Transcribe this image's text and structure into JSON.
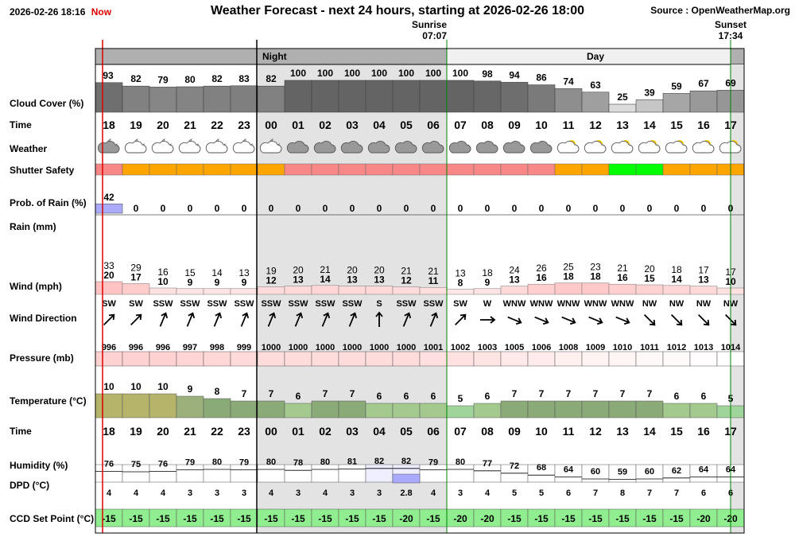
{
  "header": {
    "current_time": "2026-02-26 18:16",
    "now_label": "Now",
    "title": "Weather Forecast - next 24 hours, starting at 2026-02-26 18:00",
    "source": "Source : OpenWeatherMap.org"
  },
  "sun": {
    "sunrise_label": "Sunrise",
    "sunrise_time": "07:07",
    "sunset_label": "Sunset",
    "sunset_time": "17:34"
  },
  "bands": {
    "night": "Night",
    "day": "Day"
  },
  "row_labels": {
    "cloud": "Cloud Cover (%)",
    "time": "Time",
    "weather": "Weather",
    "shutter": "Shutter Safety",
    "rain_prob": "Prob. of Rain (%)",
    "rain": "Rain (mm)",
    "wind": "Wind (mph)",
    "wind_dir": "Wind Direction",
    "pressure": "Pressure (mb)",
    "temperature": "Temperature (°C)",
    "time2": "Time",
    "humidity": "Humidity (%)",
    "dpd": "DPD (°C)",
    "ccd": "CCD Set Point (°C)"
  },
  "colors": {
    "night_band": "#b0b0b0",
    "day_band": "#f0f0f0",
    "night_shade": "#e3e3e3",
    "cloud_fill": "#808080",
    "shutter_red": "#f88888",
    "shutter_orange": "#ffa500",
    "shutter_green": "#00ff00",
    "ccd_green": "#90ee90",
    "now_line": "#dd0000",
    "sun_line": "#008000"
  },
  "chart_data": {
    "type": "table",
    "hours": [
      "18",
      "19",
      "20",
      "21",
      "22",
      "23",
      "00",
      "01",
      "02",
      "03",
      "04",
      "05",
      "06",
      "07",
      "08",
      "09",
      "10",
      "11",
      "12",
      "13",
      "14",
      "15",
      "16",
      "17"
    ],
    "cloud_cover": [
      93,
      82,
      79,
      80,
      82,
      83,
      82,
      100,
      100,
      100,
      100,
      100,
      100,
      100,
      98,
      94,
      86,
      74,
      63,
      25,
      39,
      59,
      67,
      69
    ],
    "weather_icon": [
      "cloudy-night-icon",
      "partly-cloudy-night-icon",
      "partly-cloudy-night-icon",
      "partly-cloudy-night-icon",
      "partly-cloudy-night-icon",
      "partly-cloudy-night-icon",
      "partly-cloudy-night-icon",
      "cloudy-icon",
      "cloudy-icon",
      "cloudy-icon",
      "cloudy-icon",
      "cloudy-icon",
      "cloudy-icon",
      "cloudy-icon",
      "cloudy-icon",
      "cloudy-icon",
      "cloudy-icon",
      "partly-cloudy-day-icon",
      "partly-cloudy-day-icon",
      "partly-cloudy-day-icon",
      "partly-cloudy-day-icon",
      "partly-cloudy-day-icon",
      "partly-cloudy-day-icon",
      "partly-cloudy-day-icon"
    ],
    "shutter_safety": [
      "red",
      "orange",
      "orange",
      "orange",
      "orange",
      "orange",
      "orange",
      "red",
      "red",
      "red",
      "red",
      "red",
      "red",
      "red",
      "red",
      "red",
      "red",
      "orange",
      "orange",
      "green",
      "green",
      "orange",
      "orange",
      "orange"
    ],
    "rain_probability": [
      42,
      0,
      0,
      0,
      0,
      0,
      0,
      0,
      0,
      0,
      0,
      0,
      0,
      0,
      0,
      0,
      0,
      0,
      0,
      0,
      0,
      0,
      0,
      0
    ],
    "wind_gust": [
      33,
      29,
      16,
      15,
      14,
      13,
      19,
      20,
      21,
      20,
      20,
      21,
      21,
      13,
      18,
      24,
      26,
      25,
      23,
      21,
      20,
      18,
      17,
      17
    ],
    "wind_speed": [
      20,
      17,
      10,
      9,
      9,
      9,
      12,
      13,
      14,
      13,
      13,
      12,
      11,
      8,
      9,
      13,
      16,
      18,
      18,
      16,
      15,
      14,
      13,
      10
    ],
    "wind_direction": [
      "SW",
      "SW",
      "SSW",
      "SSW",
      "SSW",
      "SSW",
      "SSW",
      "SSW",
      "SSW",
      "SSW",
      "S",
      "SSW",
      "SSW",
      "SW",
      "W",
      "WNW",
      "WNW",
      "WNW",
      "WNW",
      "WNW",
      "NW",
      "NW",
      "NW",
      "NW"
    ],
    "pressure": [
      996,
      996,
      996,
      997,
      998,
      999,
      1000,
      1000,
      1000,
      1000,
      1000,
      1000,
      1001,
      1002,
      1003,
      1005,
      1006,
      1008,
      1009,
      1010,
      1011,
      1012,
      1013,
      1014
    ],
    "temperature": [
      10,
      10,
      10,
      9,
      8,
      7,
      7,
      6,
      7,
      7,
      6,
      6,
      6,
      5,
      6,
      7,
      7,
      7,
      7,
      7,
      7,
      6,
      6,
      5
    ],
    "humidity": [
      76,
      75,
      76,
      79,
      80,
      79,
      80,
      78,
      80,
      81,
      82,
      82,
      79,
      80,
      77,
      72,
      68,
      64,
      60,
      59,
      60,
      62,
      64,
      64
    ],
    "dpd": [
      "4",
      "4",
      "4",
      "3",
      "3",
      "3",
      "4",
      "3",
      "4",
      "3",
      "3",
      "2.8",
      "4",
      "3",
      "4",
      "5",
      "5",
      "6",
      "7",
      "8",
      "7",
      "7",
      "6",
      "6"
    ],
    "ccd_set_point": [
      -15,
      -15,
      -15,
      -15,
      -15,
      -15,
      -15,
      -15,
      -15,
      -15,
      -15,
      -20,
      -15,
      -20,
      -20,
      -15,
      -15,
      -15,
      -15,
      -15,
      -15,
      -15,
      -20,
      -20
    ]
  }
}
